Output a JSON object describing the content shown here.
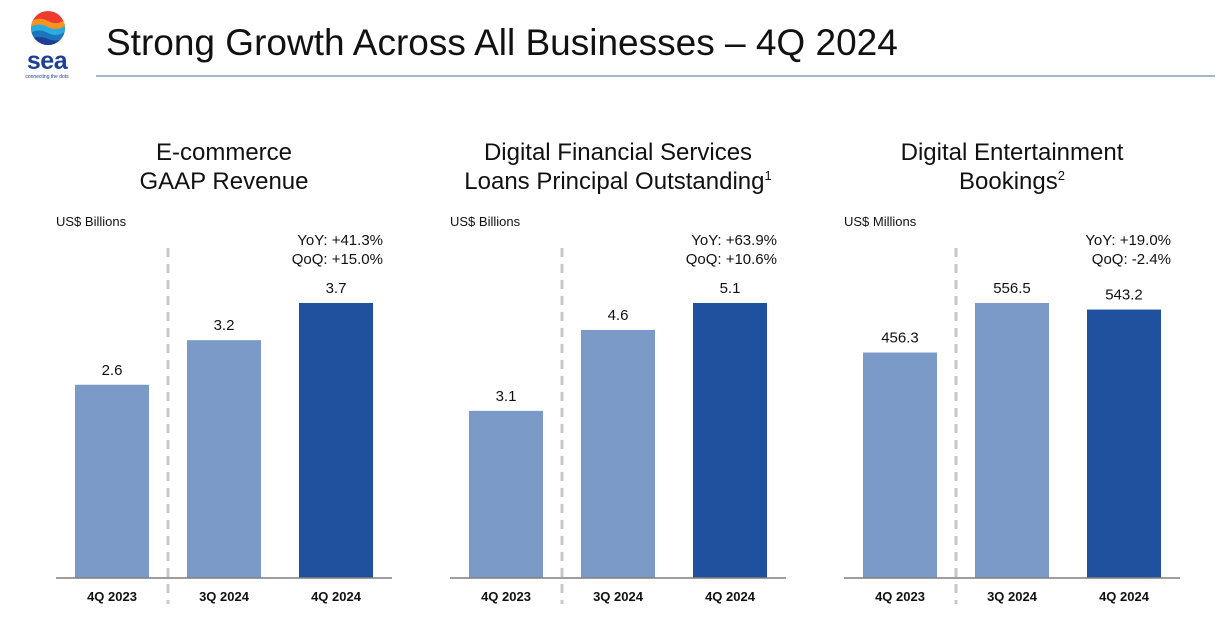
{
  "header": {
    "title": "Strong Growth Across All Businesses – 4Q 2024",
    "logo_word": "sea",
    "logo_tagline": "connecting the dots"
  },
  "colors": {
    "prior_bar": "#7b9ac8",
    "current_bar": "#20519e",
    "brand": "#1e3f94",
    "divider": "#c8c8c8"
  },
  "chart_data": [
    {
      "type": "bar",
      "title": "E-commerce GAAP Revenue",
      "title_lines": [
        "E-commerce",
        "GAAP Revenue"
      ],
      "superscript": "",
      "unit": "US$ Billions",
      "categories": [
        "4Q 2023",
        "3Q 2024",
        "4Q 2024"
      ],
      "values": [
        2.6,
        3.2,
        3.7
      ],
      "value_labels": [
        "2.6",
        "3.2",
        "3.7"
      ],
      "yoy": "YoY: +41.3%",
      "qoq": "QoQ: +15.0%",
      "ylim": [
        0,
        3.7
      ]
    },
    {
      "type": "bar",
      "title": "Digital Financial Services Loans Principal Outstanding",
      "title_lines": [
        "Digital Financial Services",
        "Loans Principal Outstanding"
      ],
      "superscript": "1",
      "unit": "US$ Billions",
      "categories": [
        "4Q 2023",
        "3Q 2024",
        "4Q 2024"
      ],
      "values": [
        3.1,
        4.6,
        5.1
      ],
      "value_labels": [
        "3.1",
        "4.6",
        "5.1"
      ],
      "yoy": "YoY: +63.9%",
      "qoq": "QoQ: +10.6%",
      "ylim": [
        0,
        5.1
      ]
    },
    {
      "type": "bar",
      "title": "Digital Entertainment Bookings",
      "title_lines": [
        "Digital Entertainment",
        "Bookings"
      ],
      "superscript": "2",
      "unit": "US$ Millions",
      "categories": [
        "4Q 2023",
        "3Q 2024",
        "4Q 2024"
      ],
      "values": [
        456.3,
        556.5,
        543.2
      ],
      "value_labels": [
        "456.3",
        "556.5",
        "543.2"
      ],
      "yoy": "YoY: +19.0%",
      "qoq": "QoQ: -2.4%",
      "ylim": [
        0,
        556.5
      ]
    }
  ]
}
